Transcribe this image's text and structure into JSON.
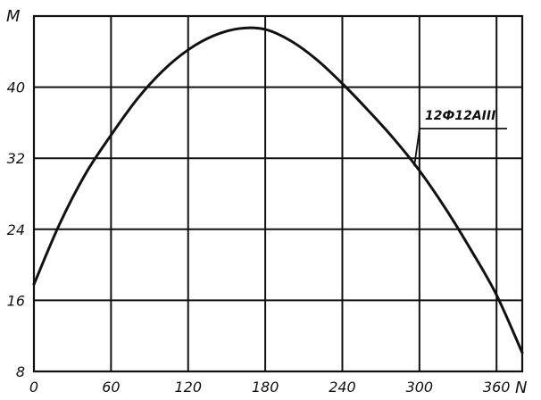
{
  "chart_data": {
    "type": "line",
    "title": "",
    "xlabel": "N",
    "ylabel": "M",
    "xlim": [
      0,
      380
    ],
    "ylim": [
      8,
      48
    ],
    "x_ticks": [
      0,
      60,
      120,
      180,
      240,
      300,
      360
    ],
    "y_ticks": [
      8,
      16,
      24,
      32,
      40
    ],
    "grid": true,
    "series": [
      {
        "name": "12Ф12АIII",
        "x": [
          0,
          20,
          40,
          60,
          80,
          100,
          120,
          140,
          160,
          180,
          200,
          220,
          240,
          260,
          280,
          300,
          320,
          340,
          360,
          380
        ],
        "y": [
          17.8,
          24.6,
          30.2,
          34.6,
          38.6,
          41.8,
          44.2,
          45.8,
          46.6,
          46.5,
          45.2,
          43.1,
          40.4,
          37.4,
          34.2,
          30.6,
          26.4,
          21.7,
          16.6,
          10.1
        ]
      }
    ]
  },
  "chart_text": {
    "x_tick_labels": [
      "0",
      "60",
      "120",
      "180",
      "240",
      "300",
      "360"
    ],
    "y_tick_labels": [
      "8",
      "16",
      "24",
      "32",
      "40"
    ],
    "x_axis_label": "N",
    "y_axis_label": "M",
    "curve_label": "12Ф12АIII"
  },
  "colors": {
    "line": "#111111",
    "grid": "#111111",
    "background": "#ffffff"
  }
}
